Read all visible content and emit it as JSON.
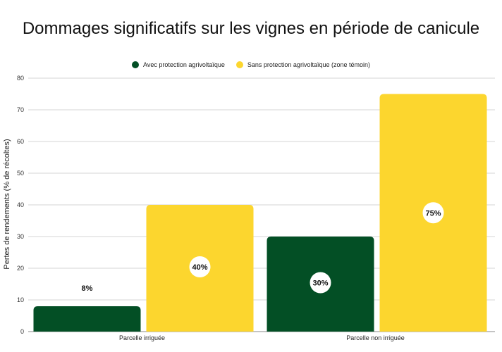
{
  "chart_data": {
    "type": "bar",
    "title": "Dommages significatifs sur les vignes en période de canicule",
    "xlabel": "",
    "ylabel": "Pertes de rendements (% de récoltes)",
    "categories": [
      "Parcelle irriguée",
      "Parcelle non irriguée"
    ],
    "series": [
      {
        "name": "Avec protection agrivoltaïque",
        "color": "#034F25",
        "values": [
          8,
          30
        ],
        "labels": [
          "8%",
          "30%"
        ]
      },
      {
        "name": "Sans protection agrivoltaïque (zone témoin)",
        "color": "#FCD62E",
        "values": [
          40,
          75
        ],
        "labels": [
          "40%",
          "75%"
        ]
      }
    ],
    "ylim": [
      0,
      80
    ],
    "yticks": [
      "0",
      "10",
      "20",
      "30",
      "40",
      "50",
      "60",
      "70",
      "80"
    ],
    "grid": true,
    "legend_position": "top"
  }
}
